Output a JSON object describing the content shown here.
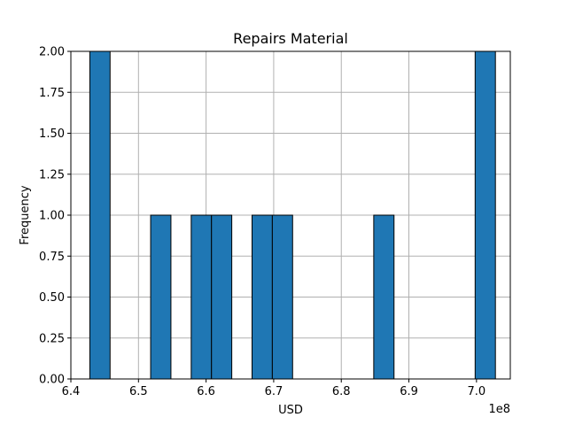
{
  "chart_data": {
    "type": "bar",
    "title": "Repairs Material",
    "xlabel": "USD",
    "ylabel": "Frequency",
    "x_offset_label": "1e8",
    "x_scale": 100000000,
    "xlim": [
      6.4,
      7.05
    ],
    "ylim": [
      0.0,
      2.0
    ],
    "x_ticks": [
      6.4,
      6.5,
      6.6,
      6.7,
      6.8,
      6.9,
      7.0
    ],
    "x_tick_labels": [
      "6.4",
      "6.5",
      "6.6",
      "6.7",
      "6.8",
      "6.9",
      "7.0"
    ],
    "y_ticks": [
      0.0,
      0.25,
      0.5,
      0.75,
      1.0,
      1.25,
      1.5,
      1.75,
      2.0
    ],
    "y_tick_labels": [
      "0.00",
      "0.25",
      "0.50",
      "0.75",
      "1.00",
      "1.25",
      "1.50",
      "1.75",
      "2.00"
    ],
    "bins": [
      {
        "start": 6.428,
        "end": 6.458,
        "count": 2
      },
      {
        "start": 6.518,
        "end": 6.548,
        "count": 1
      },
      {
        "start": 6.578,
        "end": 6.608,
        "count": 1
      },
      {
        "start": 6.608,
        "end": 6.638,
        "count": 1
      },
      {
        "start": 6.668,
        "end": 6.698,
        "count": 1
      },
      {
        "start": 6.698,
        "end": 6.728,
        "count": 1
      },
      {
        "start": 6.848,
        "end": 6.878,
        "count": 1
      },
      {
        "start": 6.998,
        "end": 7.028,
        "count": 2
      }
    ],
    "bar_color": "#1f77b4",
    "edge_color": "#000000",
    "grid": true
  }
}
